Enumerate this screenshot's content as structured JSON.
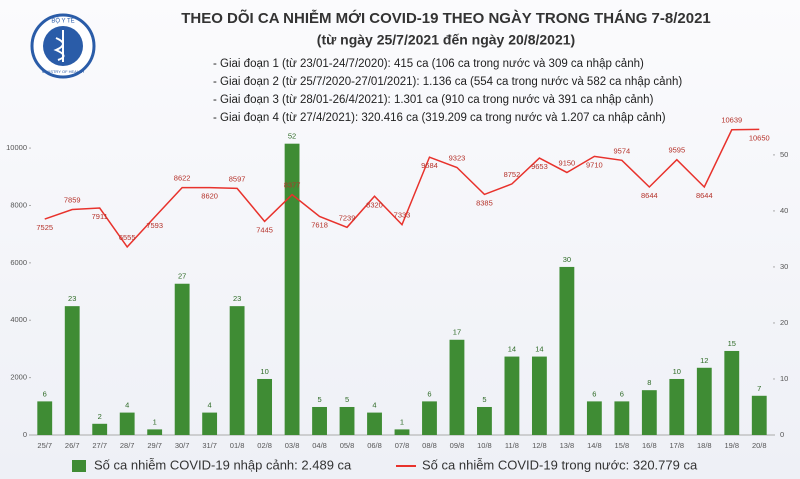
{
  "logo": {
    "top": "BỘ Y TẾ",
    "bottom": "MINISTRY OF HEALTH"
  },
  "chart_data": {
    "type": "combo",
    "title": "THEO DÕI CA NHIỄM MỚI COVID-19 THEO NGÀY TRONG THÁNG 7-8/2021",
    "subtitle": "(từ ngày 25/7/2021 đến ngày 20/8/2021)",
    "annotations": [
      "- Giai đoạn 1 (từ 23/01-24/7/2020): 415 ca (106 ca trong nước và 309 ca nhập cảnh)",
      "- Giai đoạn 2 (từ 25/7/2020-27/01/2021): 1.136 ca (554 ca trong nước và 582 ca nhập cảnh)",
      "- Giai đoạn 3 (từ 28/01-26/4/2021): 1.301 ca (910 ca trong nước và 391 ca nhập cảnh)",
      "- Giai đoạn 4 (từ 27/4/2021): 320.416 ca (319.209 ca trong nước và 1.207 ca nhập cảnh)"
    ],
    "categories": [
      "25/7",
      "26/7",
      "27/7",
      "28/7",
      "29/7",
      "30/7",
      "31/7",
      "01/8",
      "02/8",
      "03/8",
      "04/8",
      "05/8",
      "06/8",
      "07/8",
      "08/8",
      "09/8",
      "10/8",
      "11/8",
      "12/8",
      "13/8",
      "14/8",
      "15/8",
      "16/8",
      "17/8",
      "18/8",
      "19/8",
      "20/8"
    ],
    "series": [
      {
        "name": "Số ca nhiễm COVID-19 nhập cảnh: 2.489 ca",
        "type": "bar",
        "axis": "y2",
        "color": "#3f8c34",
        "values": [
          6,
          23,
          2,
          4,
          1,
          27,
          4,
          23,
          10,
          52,
          5,
          5,
          4,
          1,
          6,
          17,
          5,
          14,
          14,
          30,
          6,
          6,
          8,
          10,
          12,
          15,
          7
        ]
      },
      {
        "name": "Số ca nhiễm COVID-19 trong nước: 320.779 ca",
        "type": "line",
        "color": "#e8322c",
        "values": [
          7525,
          7859,
          7911,
          6555,
          7593,
          8622,
          8620,
          8597,
          7445,
          8377,
          7618,
          7239,
          8320,
          7333,
          9684,
          9323,
          8385,
          8752,
          9653,
          9150,
          9710,
          9574,
          8644,
          9595,
          8644,
          10639,
          10650
        ]
      }
    ],
    "ylim": [
      0,
      10700
    ],
    "yticks": [
      0,
      2000,
      4000,
      6000,
      8000,
      10000
    ],
    "y2lim": [
      0,
      54.8
    ],
    "y2ticks": [
      0,
      10,
      20,
      30,
      40,
      50
    ]
  }
}
